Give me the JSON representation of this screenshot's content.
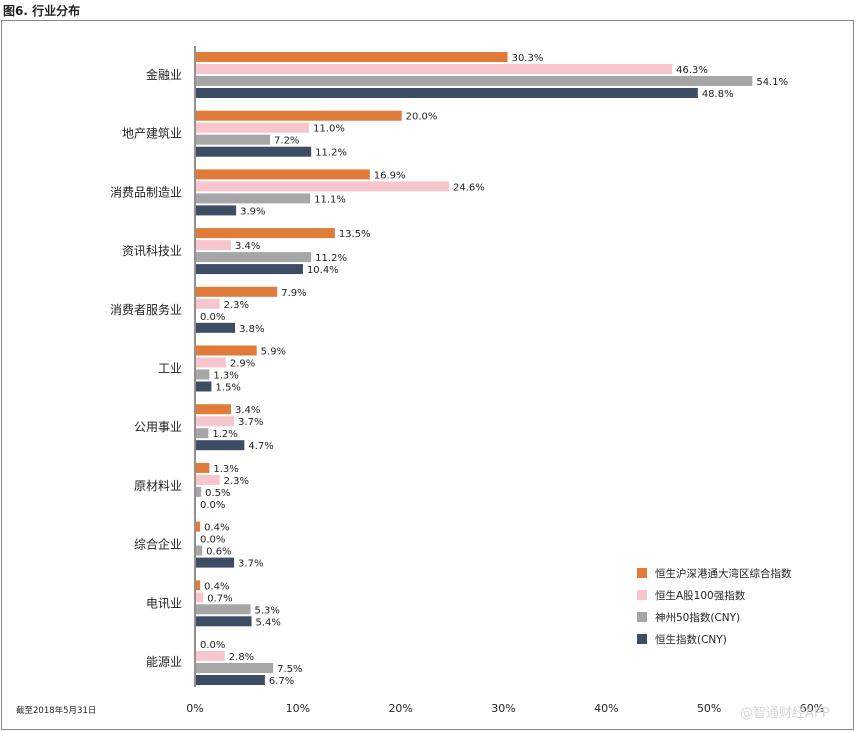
{
  "figure_title": "图6. 行业分布",
  "footnote": "截至2018年5月31日",
  "watermark": "@智通财经APP",
  "colors": {
    "series": [
      "#e07b39",
      "#f7c5cc",
      "#a6a6a6",
      "#3e4d63"
    ],
    "axis": "#231f20",
    "frame": "#8a8a8a"
  },
  "chart_data": {
    "type": "bar",
    "orientation": "horizontal",
    "categories": [
      "金融业",
      "地产建筑业",
      "消费品制造业",
      "资讯科技业",
      "消费者服务业",
      "工业",
      "公用事业",
      "原材料业",
      "综合企业",
      "电讯业",
      "能源业"
    ],
    "series": [
      {
        "name": "恒生沪深港通大湾区综合指数",
        "values": [
          30.3,
          20.0,
          16.9,
          13.5,
          7.9,
          5.9,
          3.4,
          1.3,
          0.4,
          0.4,
          0.0
        ]
      },
      {
        "name": "恒生A股100强指数",
        "values": [
          46.3,
          11.0,
          24.6,
          3.4,
          2.3,
          2.9,
          3.7,
          2.3,
          0.0,
          0.7,
          2.8
        ]
      },
      {
        "name": "神州50指数(CNY)",
        "values": [
          54.1,
          7.2,
          11.1,
          11.2,
          0.0,
          1.3,
          1.2,
          0.5,
          0.6,
          5.3,
          7.5
        ]
      },
      {
        "name": "恒生指数(CNY)",
        "values": [
          48.8,
          11.2,
          3.9,
          10.4,
          3.8,
          1.5,
          4.7,
          0.0,
          3.7,
          5.4,
          6.7
        ]
      }
    ],
    "xlim": [
      0,
      60
    ],
    "xticks": [
      0,
      10,
      20,
      30,
      40,
      50,
      60
    ],
    "value_suffix": "%",
    "tick_suffix": "%",
    "xlabel": "",
    "ylabel": "",
    "grid": false,
    "legend_position": "bottom-right"
  }
}
